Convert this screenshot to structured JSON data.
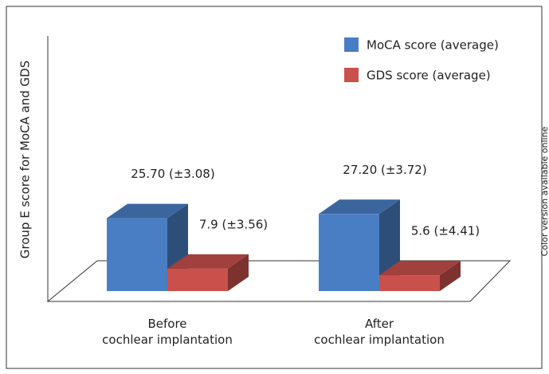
{
  "chart_data": {
    "type": "bar3d",
    "y_label": "Group E score for MoCA and GDS",
    "note": "Color version available online",
    "categories": [
      "Before\ncochlear implantation",
      "After\ncochlear implantation"
    ],
    "series": [
      {
        "name": "MoCA score (average)",
        "color": "#4a7ec4",
        "values": [
          25.7,
          27.2
        ],
        "value_labels": [
          "25.70 (±3.08)",
          "27.20 (±3.72)"
        ]
      },
      {
        "name": "GDS score (average)",
        "color": "#c9504b",
        "values": [
          7.9,
          5.6
        ],
        "value_labels": [
          "7.9 (±3.56)",
          "5.6 (±4.41)"
        ]
      }
    ],
    "ylim": [
      0,
      90
    ],
    "legend": "top-right"
  }
}
